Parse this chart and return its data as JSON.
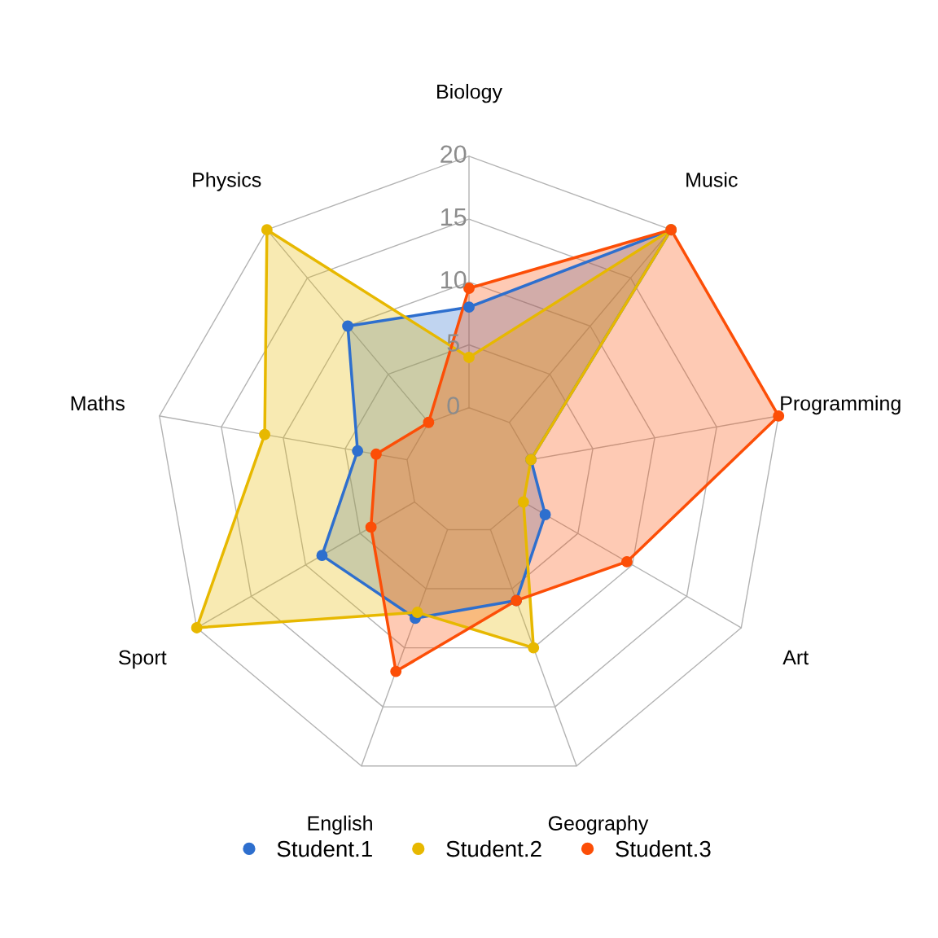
{
  "chart_data": {
    "type": "radar",
    "categories": [
      "Biology",
      "Music",
      "Programming",
      "Art",
      "Geography",
      "English",
      "Sport",
      "Maths",
      "Physics"
    ],
    "series": [
      {
        "name": "Student.1",
        "color": "#2e6fce",
        "values": [
          8,
          20,
          0,
          2,
          6,
          7.5,
          8.5,
          4,
          10
        ]
      },
      {
        "name": "Student.2",
        "color": "#e7b800",
        "values": [
          4,
          20,
          0,
          0,
          10,
          7,
          20,
          11.5,
          20
        ]
      },
      {
        "name": "Student.3",
        "color": "#fc4e07",
        "values": [
          9.5,
          20,
          20,
          9.5,
          6,
          12,
          4,
          2.5,
          0
        ]
      }
    ],
    "ylim": [
      -5,
      20
    ],
    "yticks": [
      0,
      5,
      10,
      15,
      20
    ],
    "grid": true,
    "legend": "bottom",
    "marker": "circle",
    "line_style": "solid"
  }
}
